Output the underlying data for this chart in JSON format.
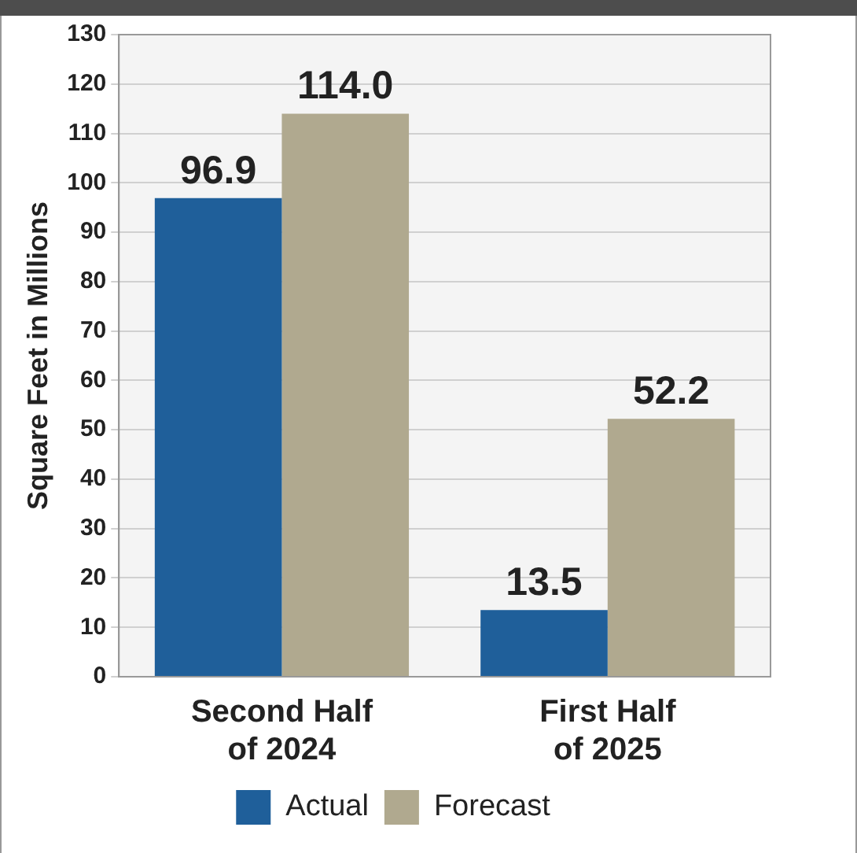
{
  "chart_data": {
    "type": "bar",
    "ylabel": "Square Feet in Millions",
    "categories": [
      "Second Half of 2024",
      "First Half of 2025"
    ],
    "series": [
      {
        "name": "Actual",
        "color": "#1f5f9a",
        "values": [
          96.9,
          13.5
        ],
        "value_labels": [
          "96.9",
          "13.5"
        ]
      },
      {
        "name": "Forecast",
        "color": "#b0a98f",
        "values": [
          114.0,
          52.2
        ],
        "value_labels": [
          "114.0",
          "52.2"
        ]
      }
    ],
    "ylim": [
      0,
      130
    ],
    "yticks": [
      0,
      10,
      20,
      30,
      40,
      50,
      60,
      70,
      80,
      90,
      100,
      110,
      120,
      130
    ],
    "grid": "y",
    "legend": "bottom"
  }
}
